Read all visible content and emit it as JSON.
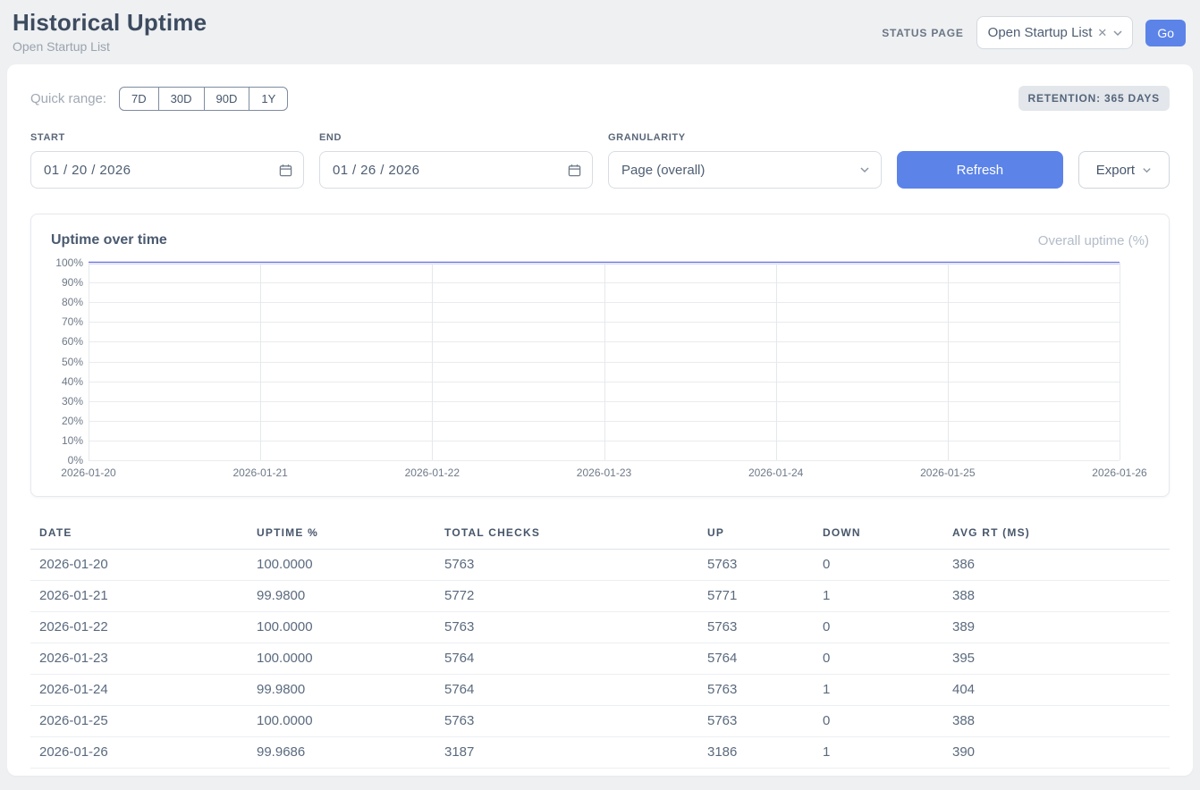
{
  "header": {
    "title": "Historical Uptime",
    "subtitle": "Open Startup List",
    "status_page_label": "STATUS PAGE",
    "status_page_value": "Open Startup List",
    "status_page_clear": "✕",
    "go_label": "Go"
  },
  "filters": {
    "quick_range_label": "Quick range:",
    "quick_ranges": [
      "7D",
      "30D",
      "90D",
      "1Y"
    ],
    "retention_badge": "RETENTION: 365 DAYS",
    "start_label": "START",
    "start_value": "01 / 20 / 2026",
    "end_label": "END",
    "end_value": "01 / 26 / 2026",
    "granularity_label": "GRANULARITY",
    "granularity_value": "Page (overall)",
    "refresh_label": "Refresh",
    "export_label": "Export"
  },
  "chart_data": {
    "type": "line",
    "title": "Uptime over time",
    "legend": "Overall uptime (%)",
    "legend_position": "top-right",
    "x": [
      "2026-01-20",
      "2026-01-21",
      "2026-01-22",
      "2026-01-23",
      "2026-01-24",
      "2026-01-25",
      "2026-01-26"
    ],
    "series": [
      {
        "name": "Overall uptime (%)",
        "values": [
          100.0,
          99.98,
          100.0,
          100.0,
          99.98,
          100.0,
          99.9686
        ]
      }
    ],
    "ylim": [
      0,
      100
    ],
    "yticks": [
      "100%",
      "90%",
      "80%",
      "70%",
      "60%",
      "50%",
      "40%",
      "30%",
      "20%",
      "10%",
      "0%"
    ],
    "grid": true,
    "line_color": "#6e74e4"
  },
  "table": {
    "columns": [
      "DATE",
      "UPTIME %",
      "TOTAL CHECKS",
      "UP",
      "DOWN",
      "AVG RT (MS)"
    ],
    "rows": [
      [
        "2026-01-20",
        "100.0000",
        "5763",
        "5763",
        "0",
        "386"
      ],
      [
        "2026-01-21",
        "99.9800",
        "5772",
        "5771",
        "1",
        "388"
      ],
      [
        "2026-01-22",
        "100.0000",
        "5763",
        "5763",
        "0",
        "389"
      ],
      [
        "2026-01-23",
        "100.0000",
        "5764",
        "5764",
        "0",
        "395"
      ],
      [
        "2026-01-24",
        "99.9800",
        "5764",
        "5763",
        "1",
        "404"
      ],
      [
        "2026-01-25",
        "100.0000",
        "5763",
        "5763",
        "0",
        "388"
      ],
      [
        "2026-01-26",
        "99.9686",
        "3187",
        "3186",
        "1",
        "390"
      ]
    ]
  },
  "colors": {
    "accent_blue": "#5b83e8",
    "line_indigo": "#6e74e4",
    "page_bg": "#eef0f2"
  }
}
